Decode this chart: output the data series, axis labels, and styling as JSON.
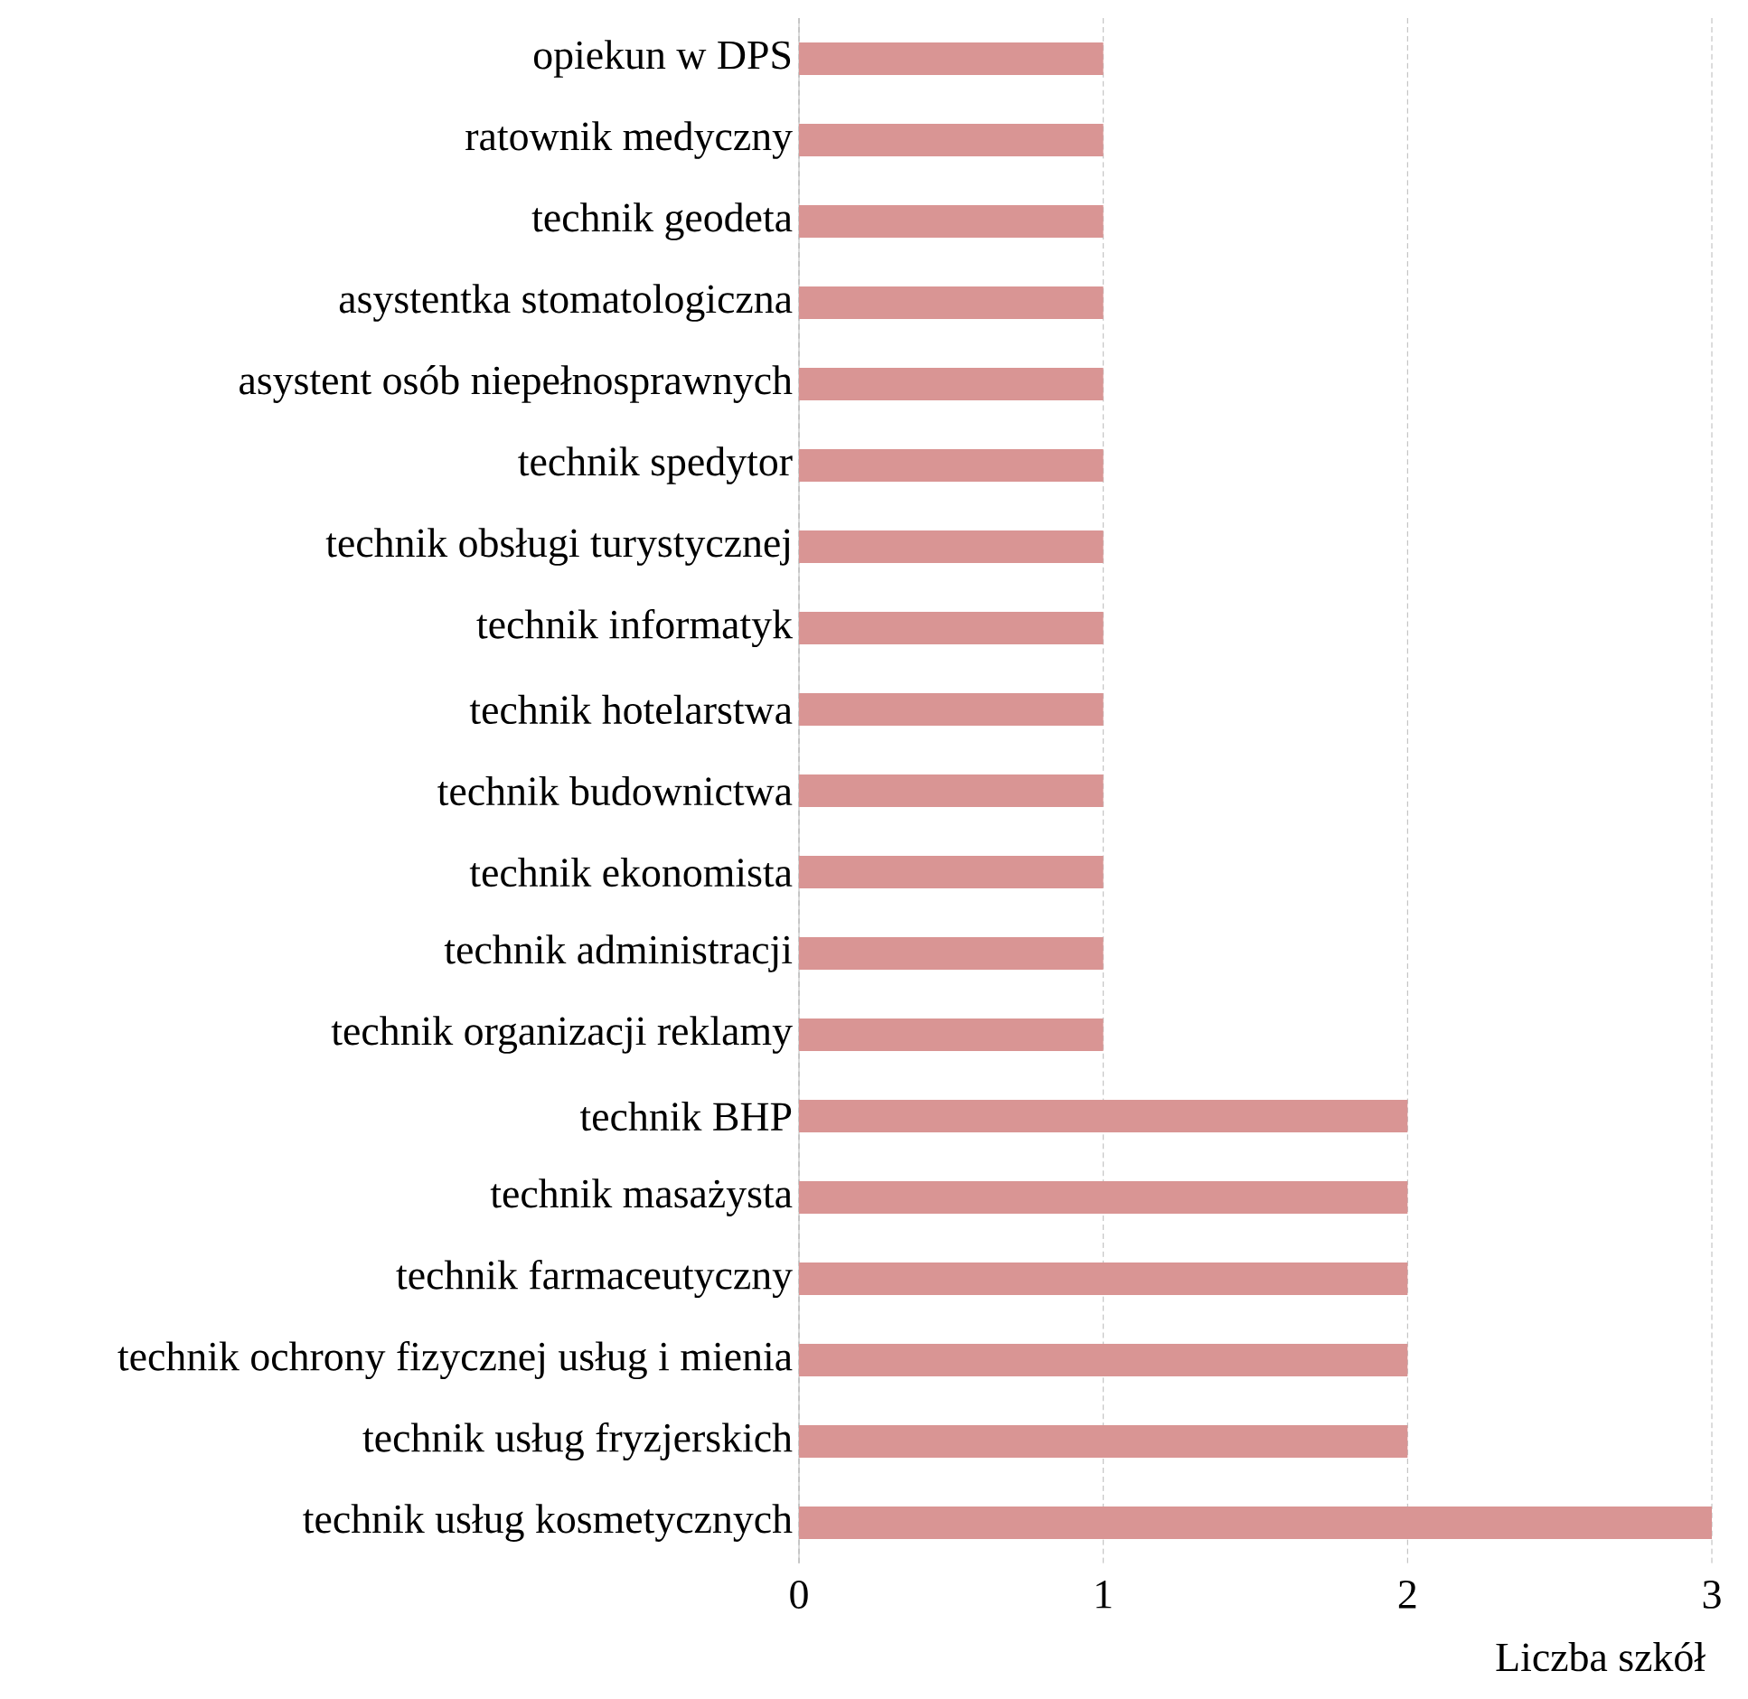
{
  "chart_data": {
    "type": "bar",
    "orientation": "horizontal",
    "xlabel": "Liczba szkół",
    "categories": [
      "opiekun w DPS",
      "ratownik medyczny",
      "technik geodeta",
      "asystentka stomatologiczna",
      "asystent osób niepełnosprawnych",
      "technik spedytor",
      "technik obsługi turystycznej",
      "technik informatyk",
      "technik hotelarstwa",
      "technik budownictwa",
      "technik ekonomista",
      "technik administracji",
      "technik organizacji reklamy",
      "technik BHP",
      "technik masażysta",
      "technik farmaceutyczny",
      "technik ochrony fizycznej usług i mienia",
      "technik usług fryzjerskich",
      "technik usług kosmetycznych"
    ],
    "values": [
      1,
      1,
      1,
      1,
      1,
      1,
      1,
      1,
      1,
      1,
      1,
      1,
      1,
      2,
      2,
      2,
      2,
      2,
      3
    ],
    "color": "#d99594",
    "xlim": [
      0,
      3
    ],
    "xticks": [
      0,
      1,
      2,
      3
    ],
    "grid": "x"
  }
}
